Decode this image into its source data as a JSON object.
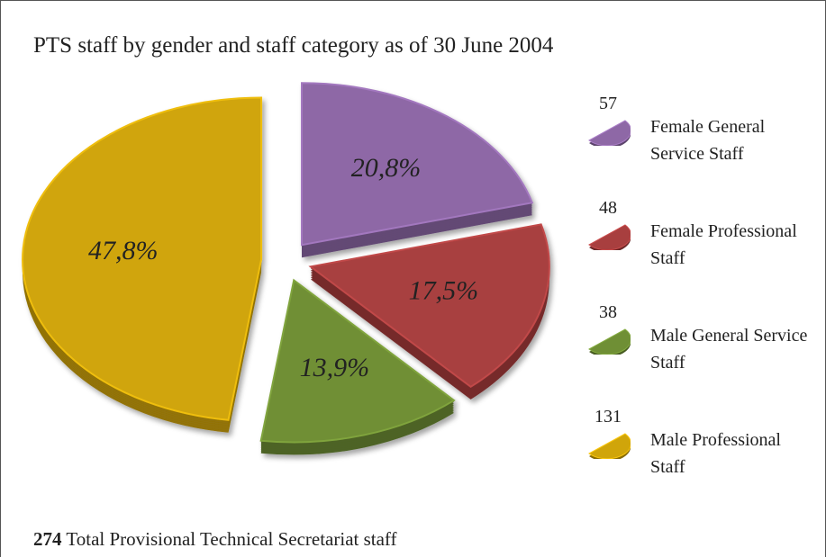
{
  "chart_data": {
    "type": "pie",
    "title": "PTS staff by gender and staff category as of 30 June 2004",
    "categories": [
      "Female General Service Staff",
      "Female Professional Staff",
      "Male General Service Staff",
      "Male Professional Staff"
    ],
    "values": [
      20.8,
      17.5,
      13.9,
      47.8
    ],
    "value_labels": [
      "20,8%",
      "17,5%",
      "13,9%",
      "47,8%"
    ],
    "counts": [
      57,
      48,
      38,
      131
    ],
    "colors": [
      "#8e68a6",
      "#a83f3f",
      "#6f8f35",
      "#d0a50a"
    ],
    "total": 274,
    "total_text": "Total Provisional Technical Secretariat staff"
  }
}
